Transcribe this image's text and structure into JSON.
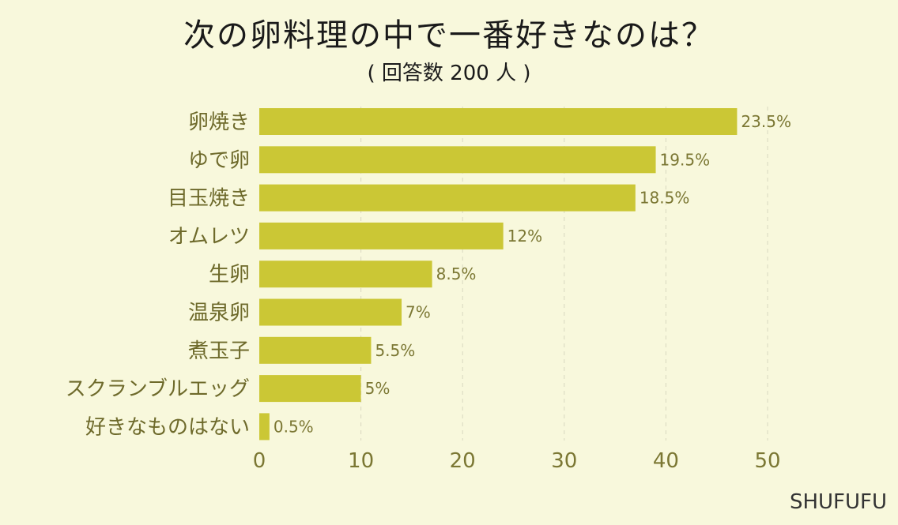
{
  "title": "次の卵料理の中で一番好きなのは？",
  "subtitle": "( 回答数 200 人 )",
  "brand": "SHUFUFU",
  "colors": {
    "background": "#f8f8dc",
    "bar": "#cbc735",
    "label": "#6e6a2b",
    "grid": "#d9d8c0"
  },
  "chart_data": {
    "type": "bar",
    "orientation": "horizontal",
    "categories": [
      "卵焼き",
      "ゆで卵",
      "目玉焼き",
      "オムレツ",
      "生卵",
      "温泉卵",
      "煮玉子",
      "スクランブルエッグ",
      "好きなものはない"
    ],
    "values": [
      47,
      39,
      37,
      24,
      17,
      14,
      11,
      10,
      1
    ],
    "value_labels": [
      "23.5%",
      "19.5%",
      "18.5%",
      "12%",
      "8.5%",
      "7%",
      "5.5%",
      "5%",
      "0.5%"
    ],
    "xlim": [
      0,
      50
    ],
    "xticks": [
      "0",
      "10",
      "20",
      "30",
      "40",
      "50"
    ],
    "grid": true
  }
}
